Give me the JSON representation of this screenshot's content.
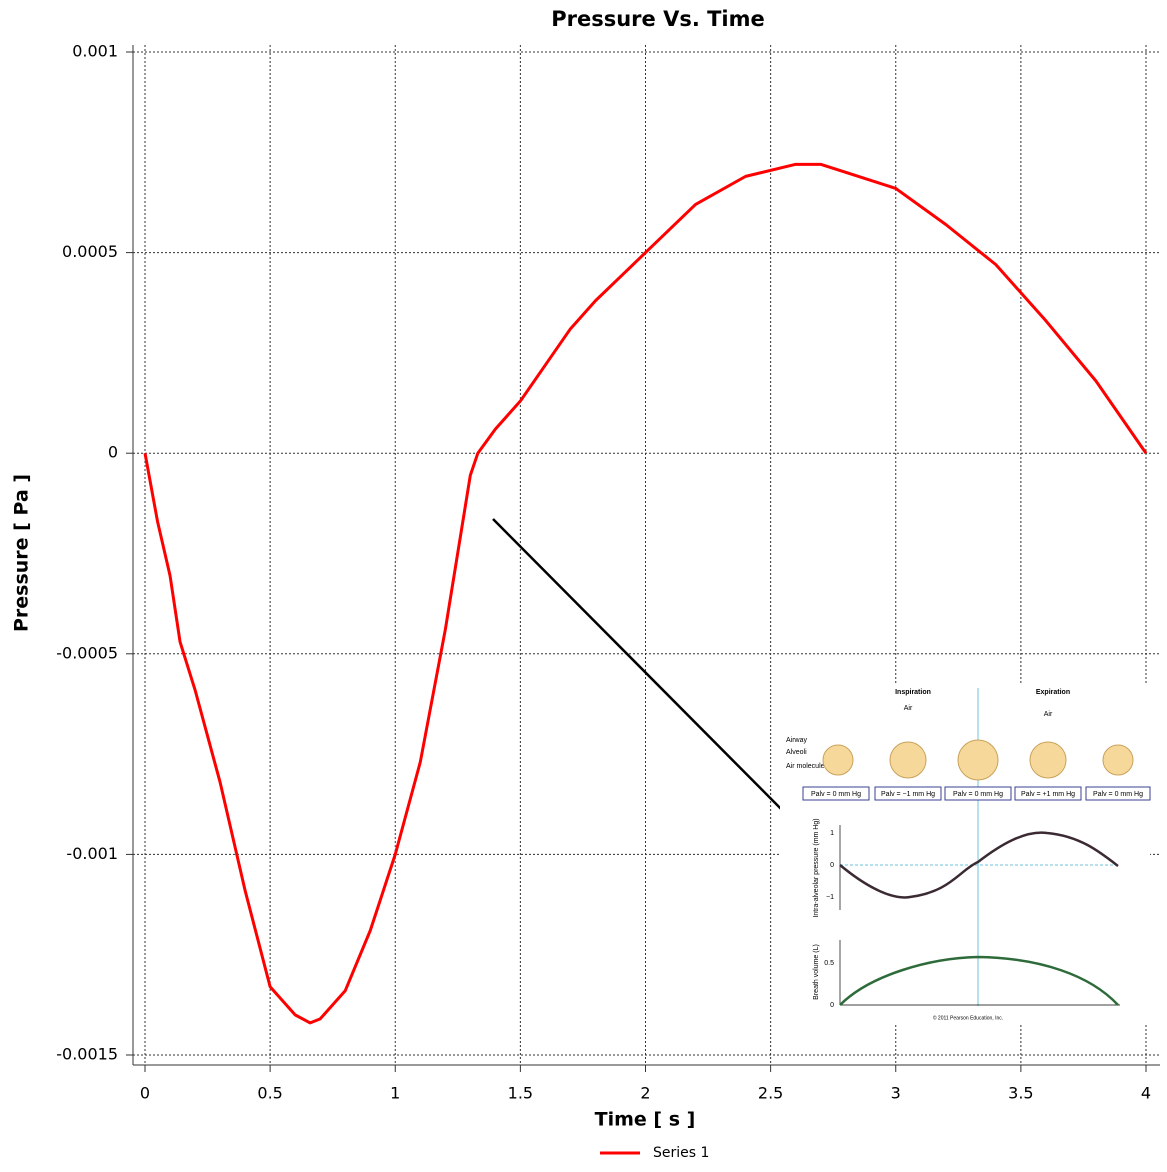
{
  "chart_data": {
    "type": "line",
    "title": "Pressure Vs. Time",
    "x_label": "Time [ s ]",
    "y_label": "Pressure [ Pa ]",
    "x": [
      0,
      0.05,
      0.1,
      0.14,
      0.2,
      0.3,
      0.4,
      0.5,
      0.6,
      0.66,
      0.7,
      0.8,
      0.9,
      1.0,
      1.1,
      1.2,
      1.3,
      1.33,
      1.4,
      1.5,
      1.6,
      1.7,
      1.8,
      1.9,
      2.0,
      2.2,
      2.4,
      2.6,
      2.7,
      2.8,
      3.0,
      3.2,
      3.4,
      3.6,
      3.8,
      4.0
    ],
    "series": [
      {
        "name": "Series 1",
        "color": "#ff0000",
        "values": [
          0,
          -0.00017,
          -0.000305,
          -0.00047,
          -0.00059,
          -0.00082,
          -0.00109,
          -0.00133,
          -0.0014,
          -0.00142,
          -0.00141,
          -0.00134,
          -0.00119,
          -0.001,
          -0.00077,
          -0.00044,
          -5.5e-05,
          0,
          6e-05,
          0.00013,
          0.00022,
          0.00031,
          0.00038,
          0.00044,
          0.0005,
          0.00062,
          0.00069,
          0.00072,
          0.00072,
          0.0007,
          0.00066,
          0.00057,
          0.00047,
          0.00033,
          0.00018,
          0
        ]
      }
    ],
    "xlim": [
      0,
      4
    ],
    "xticks": [
      0,
      0.5,
      1,
      1.5,
      2,
      2.5,
      3,
      3.5,
      4
    ],
    "ylim": [
      -0.0015,
      0.001
    ],
    "yticks": [
      -0.0015,
      -0.001,
      -0.0005,
      0,
      0.0005,
      0.001
    ],
    "grid": true,
    "legend": "bottom"
  },
  "inset": {
    "inspiration": "Inspiration",
    "expiration": "Expiration",
    "air_in": "Air",
    "air_out": "Air",
    "airway": "Airway",
    "alveoli": "Alveoli",
    "air_molecule": "Air molecule",
    "boxes": [
      "Palv = 0 mm Hg",
      "Palv = −1 mm Hg",
      "Palv = 0 mm Hg",
      "Palv = +1 mm Hg",
      "Palv = 0 mm Hg"
    ],
    "pressure_label": "Intra-alveolar pressure (mm Hg)",
    "pressure_ticks": [
      "1",
      "0",
      "−1"
    ],
    "volume_label": "Breath volume (L)",
    "volume_ticks": [
      "0.5",
      "0"
    ],
    "copyright": "© 2011 Pearson Education, Inc."
  }
}
